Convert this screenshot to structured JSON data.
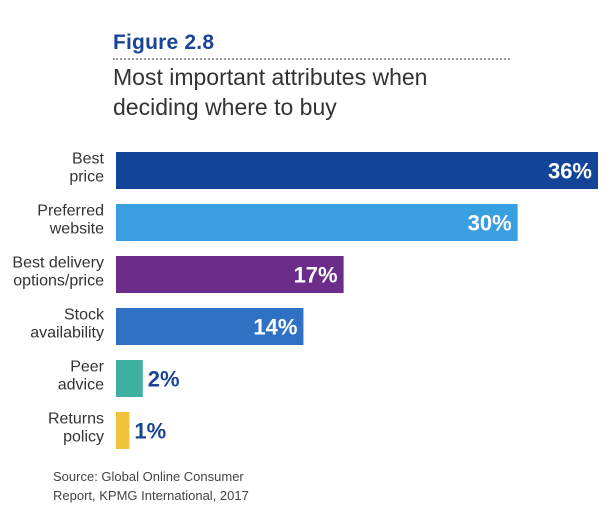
{
  "header": {
    "figure_label": "Figure 2.8",
    "title": "Most important attributes when deciding where to buy"
  },
  "chart_data": {
    "type": "bar",
    "orientation": "horizontal",
    "title": "Most important attributes when deciding where to buy",
    "xlabel": "",
    "ylabel": "",
    "grid": false,
    "value_suffix": "%",
    "bars": [
      {
        "label_lines": [
          "Best",
          "price"
        ],
        "value": 36,
        "color": "#12449a",
        "text_color": "#ffffff",
        "label_inside": true
      },
      {
        "label_lines": [
          "Preferred",
          "website"
        ],
        "value": 30,
        "color": "#3a9fe0",
        "text_color": "#ffffff",
        "label_inside": true
      },
      {
        "label_lines": [
          "Best delivery",
          "options/price"
        ],
        "value": 17,
        "color": "#6b2c8a",
        "text_color": "#ffffff",
        "label_inside": true
      },
      {
        "label_lines": [
          "Stock",
          "availability"
        ],
        "value": 14,
        "color": "#2f72c4",
        "text_color": "#ffffff",
        "label_inside": true
      },
      {
        "label_lines": [
          "Peer",
          "advice"
        ],
        "value": 2,
        "color": "#3fb1a3",
        "text_color": "#1a4594",
        "label_inside": false
      },
      {
        "label_lines": [
          "Returns",
          "policy"
        ],
        "value": 1,
        "color": "#f3c23c",
        "text_color": "#1a4594",
        "label_inside": false
      }
    ]
  },
  "footer": {
    "source_line1": "Source: Global Online Consumer",
    "source_line2": "Report, KPMG International, 2017"
  }
}
